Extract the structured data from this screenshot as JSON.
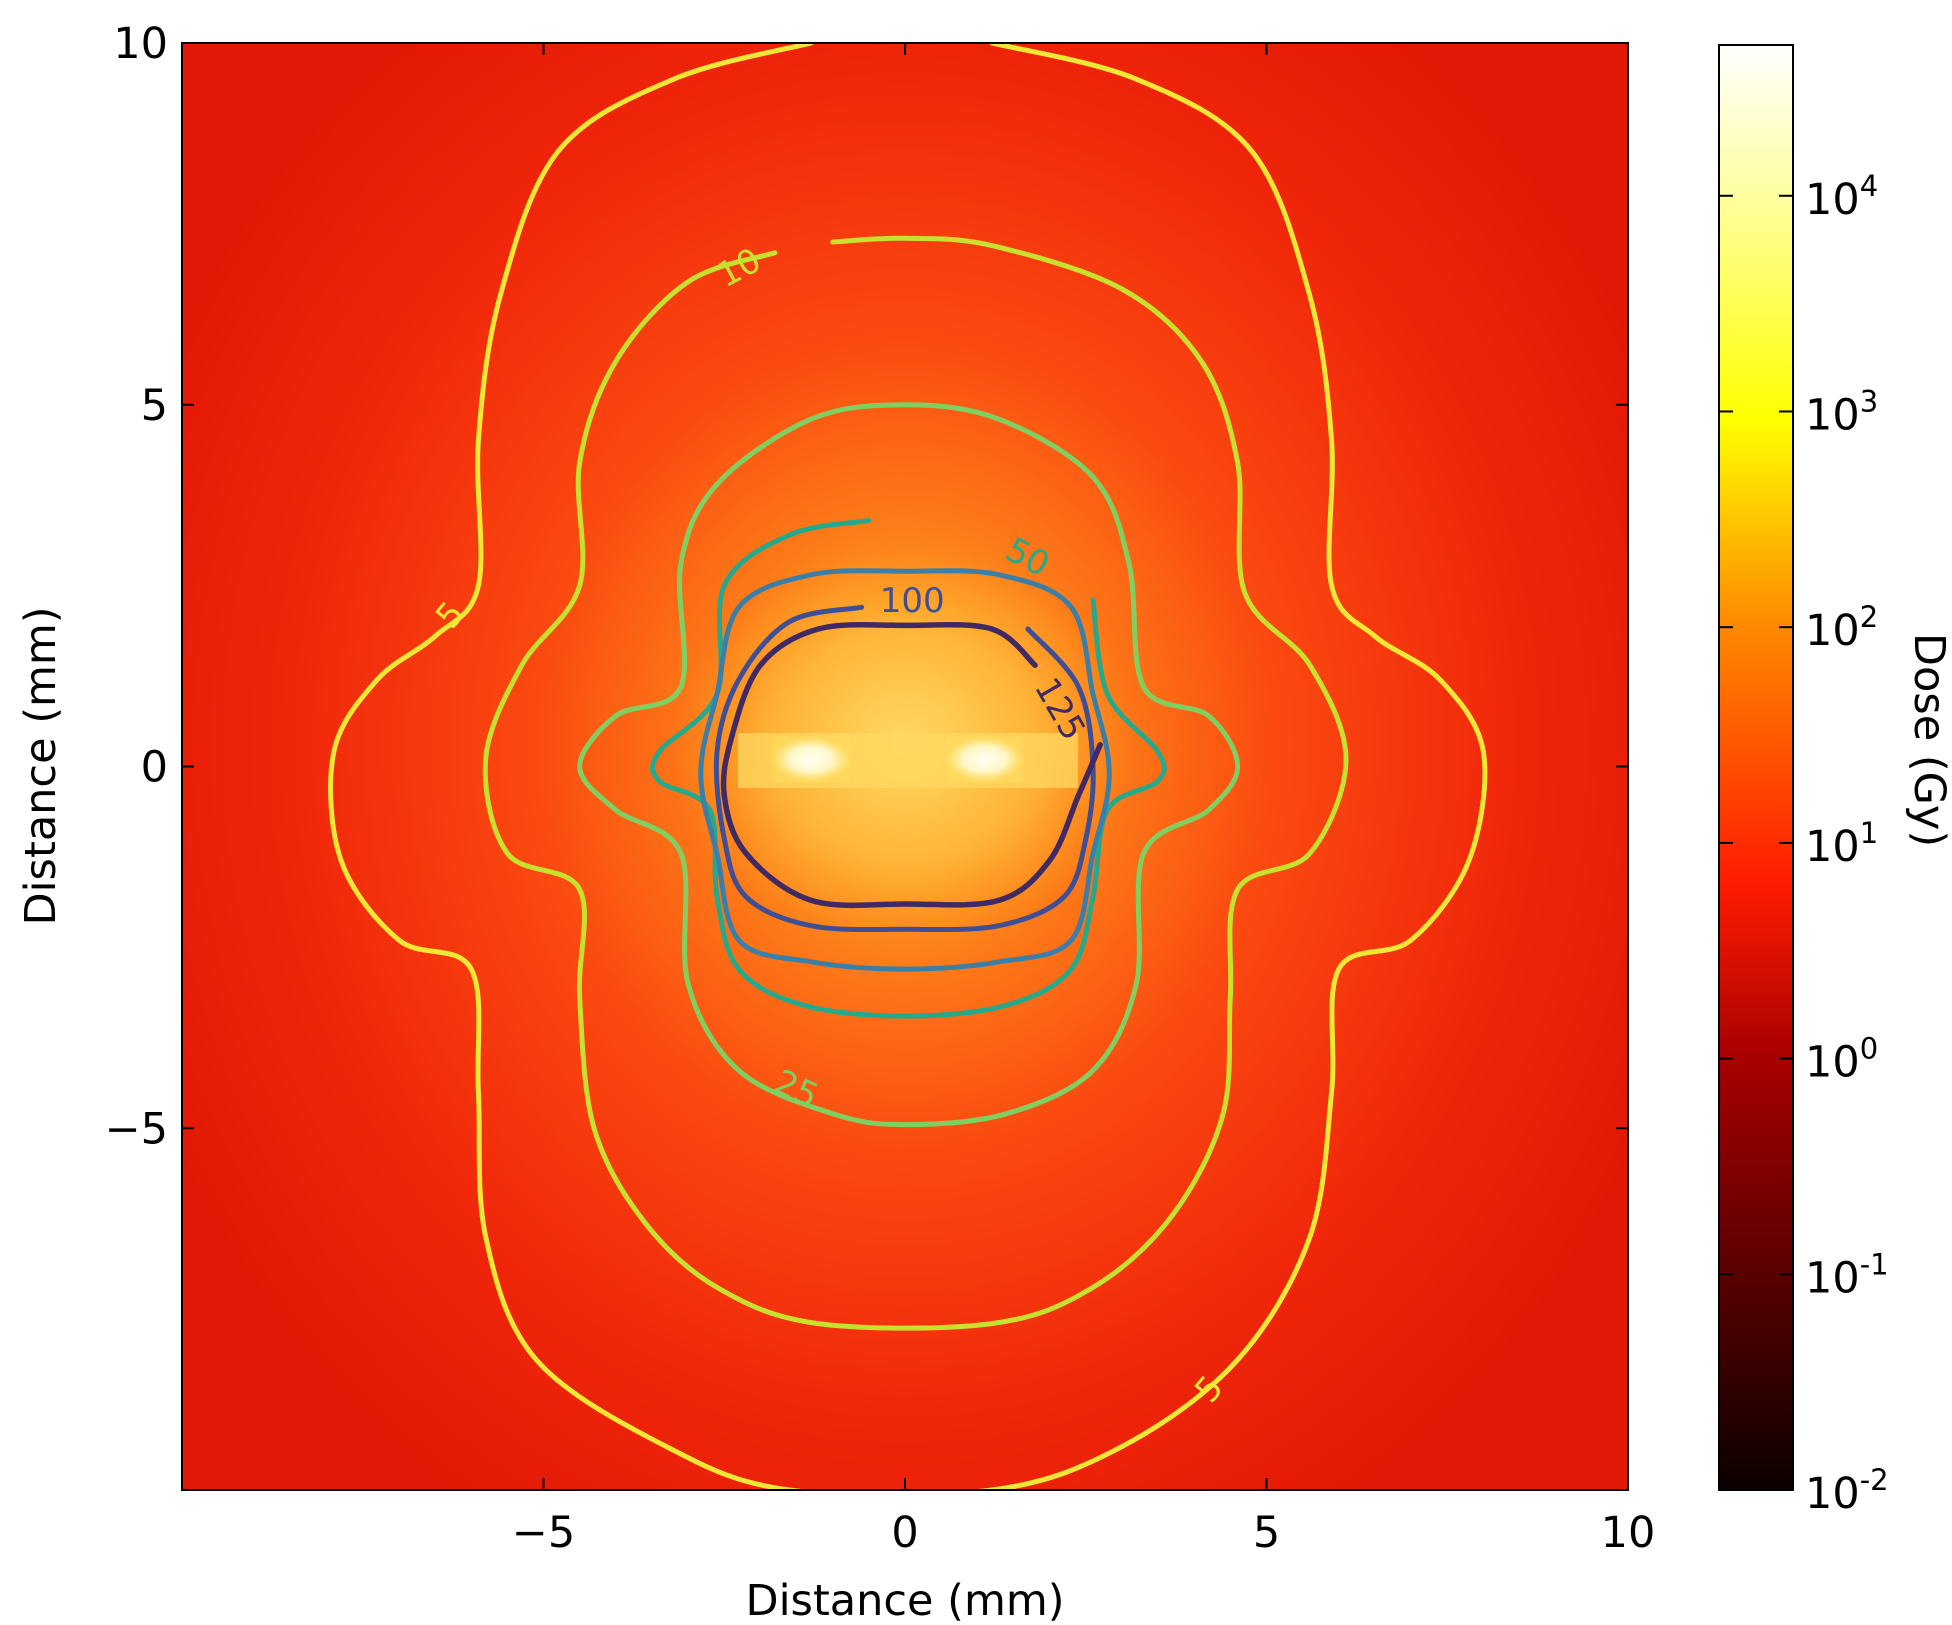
{
  "chart_data": {
    "type": "heatmap",
    "xlabel": "Distance (mm)",
    "ylabel": "Distance (mm)",
    "xlim": [
      -10,
      10
    ],
    "ylim": [
      -10,
      10
    ],
    "x_ticks": [
      -5,
      0,
      5,
      10
    ],
    "y_ticks": [
      10,
      5,
      0,
      -5
    ],
    "x_tick_labels": [
      "−5",
      "0",
      "5",
      "10"
    ],
    "y_tick_labels": [
      "10",
      "5",
      "0",
      "−5"
    ],
    "colormap": "hot",
    "hot_spots": [
      {
        "x": -1.3,
        "y": 0.1,
        "half_width": 0.55,
        "half_height": 0.32
      },
      {
        "x": 1.1,
        "y": 0.1,
        "half_width": 0.55,
        "half_height": 0.32
      }
    ],
    "colorbar": {
      "label": "Dose (Gy)",
      "scale": "log",
      "range": [
        0.01,
        50000
      ],
      "tick_values": [
        0.01,
        0.1,
        1,
        10,
        100,
        1000,
        10000
      ],
      "tick_labels": [
        {
          "base": "10",
          "exp": "-2"
        },
        {
          "base": "10",
          "exp": "-1"
        },
        {
          "base": "10",
          "exp": "0"
        },
        {
          "base": "10",
          "exp": "1"
        },
        {
          "base": "10",
          "exp": "2"
        },
        {
          "base": "10",
          "exp": "3"
        },
        {
          "base": "10",
          "exp": "4"
        }
      ]
    },
    "contours": [
      {
        "level": 5,
        "color": "#f2e735",
        "width": 5,
        "label_text": "5",
        "label_positions": [
          {
            "x": -6.3,
            "y": 2.1,
            "angle": -50
          },
          {
            "x": 4.2,
            "y": -8.6,
            "angle": -50
          }
        ],
        "points": [
          [
            -1.3,
            10
          ],
          [
            -3.2,
            9.5
          ],
          [
            -4.8,
            8.5
          ],
          [
            -5.6,
            6.5
          ],
          [
            -5.9,
            4.5
          ],
          [
            -5.9,
            2.5
          ],
          [
            -6.5,
            1.8
          ],
          [
            -7.3,
            1.2
          ],
          [
            -7.9,
            0.2
          ],
          [
            -7.8,
            -1.3
          ],
          [
            -7.0,
            -2.4
          ],
          [
            -6.0,
            -2.8
          ],
          [
            -5.9,
            -4.5
          ],
          [
            -5.8,
            -6.5
          ],
          [
            -5.1,
            -8.2
          ],
          [
            -3.3,
            -9.4
          ],
          [
            -1.6,
            -10
          ],
          [
            1.2,
            -10
          ],
          [
            3.0,
            -9.4
          ],
          [
            4.6,
            -8.2
          ],
          [
            5.6,
            -6.5
          ],
          [
            5.9,
            -4.5
          ],
          [
            6.0,
            -2.8
          ],
          [
            7.0,
            -2.4
          ],
          [
            7.8,
            -1.3
          ],
          [
            8.0,
            0.2
          ],
          [
            7.4,
            1.2
          ],
          [
            6.5,
            1.8
          ],
          [
            5.9,
            2.5
          ],
          [
            5.9,
            4.5
          ],
          [
            5.6,
            6.5
          ],
          [
            4.8,
            8.5
          ],
          [
            3.2,
            9.5
          ],
          [
            1.2,
            10
          ]
        ]
      },
      {
        "level": 10,
        "color": "#c8e02e",
        "width": 5,
        "label_text": "10",
        "label_positions": [
          {
            "x": -2.3,
            "y": 6.9,
            "angle": -28
          }
        ],
        "points": [
          [
            -1.8,
            7.1
          ],
          [
            -3.0,
            6.7
          ],
          [
            -4.0,
            5.6
          ],
          [
            -4.5,
            4.2
          ],
          [
            -4.5,
            2.5
          ],
          [
            -5.3,
            1.4
          ],
          [
            -5.8,
            0.1
          ],
          [
            -5.5,
            -1.2
          ],
          [
            -4.5,
            -1.7
          ],
          [
            -4.5,
            -3.2
          ],
          [
            -4.3,
            -5.0
          ],
          [
            -3.6,
            -6.3
          ],
          [
            -2.6,
            -7.2
          ],
          [
            -1.2,
            -7.7
          ],
          [
            1.2,
            -7.7
          ],
          [
            2.6,
            -7.2
          ],
          [
            3.7,
            -6.2
          ],
          [
            4.4,
            -4.8
          ],
          [
            4.5,
            -3.2
          ],
          [
            4.6,
            -1.7
          ],
          [
            5.6,
            -1.2
          ],
          [
            6.1,
            0.1
          ],
          [
            5.6,
            1.4
          ],
          [
            4.7,
            2.4
          ],
          [
            4.6,
            4.2
          ],
          [
            4.1,
            5.6
          ],
          [
            3.0,
            6.6
          ],
          [
            1.2,
            7.2
          ],
          [
            0,
            7.3
          ],
          [
            -1.0,
            7.25
          ]
        ]
      },
      {
        "level": 25,
        "color": "#7fd060",
        "width": 5,
        "label_text": "25",
        "label_positions": [
          {
            "x": -1.5,
            "y": -4.45,
            "angle": 25
          }
        ],
        "points": [
          [
            -1.0,
            -4.8
          ],
          [
            -2.3,
            -4.2
          ],
          [
            -3.0,
            -3.0
          ],
          [
            -3.1,
            -1.2
          ],
          [
            -4.0,
            -0.6
          ],
          [
            -4.5,
            0.0
          ],
          [
            -4.0,
            0.7
          ],
          [
            -3.1,
            1.1
          ],
          [
            -3.1,
            2.8
          ],
          [
            -2.6,
            3.9
          ],
          [
            -1.3,
            4.8
          ],
          [
            0,
            5.0
          ],
          [
            1.3,
            4.8
          ],
          [
            2.6,
            4.0
          ],
          [
            3.1,
            2.8
          ],
          [
            3.3,
            1.1
          ],
          [
            4.2,
            0.7
          ],
          [
            4.6,
            0.0
          ],
          [
            4.2,
            -0.6
          ],
          [
            3.3,
            -1.2
          ],
          [
            3.2,
            -3.0
          ],
          [
            2.6,
            -4.2
          ],
          [
            1.4,
            -4.8
          ],
          [
            0,
            -4.95
          ]
        ]
      },
      {
        "level": 50,
        "color": "#26a98a",
        "width": 5,
        "label_text": "50",
        "label_positions": [
          {
            "x": 1.7,
            "y": 2.9,
            "angle": 28
          }
        ],
        "points": [
          [
            -0.5,
            3.4
          ],
          [
            -1.6,
            3.2
          ],
          [
            -2.5,
            2.5
          ],
          [
            -2.6,
            1.0
          ],
          [
            -3.4,
            0.2
          ],
          [
            -3.4,
            -0.2
          ],
          [
            -2.7,
            -0.6
          ],
          [
            -2.6,
            -1.8
          ],
          [
            -2.3,
            -2.8
          ],
          [
            -1.4,
            -3.3
          ],
          [
            0,
            -3.45
          ],
          [
            1.4,
            -3.3
          ],
          [
            2.3,
            -2.8
          ],
          [
            2.6,
            -1.8
          ],
          [
            2.8,
            -0.6
          ],
          [
            3.5,
            -0.2
          ],
          [
            3.5,
            0.2
          ],
          [
            2.8,
            1.0
          ],
          [
            2.6,
            2.3
          ]
        ]
      },
      {
        "level": 75,
        "color": "#3b7fa8",
        "width": 5,
        "label_text": "",
        "label_positions": [],
        "points": [
          [
            -1.3,
            2.65
          ],
          [
            -2.3,
            2.2
          ],
          [
            -2.6,
            1.0
          ],
          [
            -2.8,
            0.2
          ],
          [
            -2.8,
            -0.4
          ],
          [
            -2.6,
            -1.2
          ],
          [
            -2.3,
            -2.4
          ],
          [
            -1.3,
            -2.7
          ],
          [
            0,
            -2.8
          ],
          [
            1.3,
            -2.7
          ],
          [
            2.3,
            -2.4
          ],
          [
            2.6,
            -1.2
          ],
          [
            2.8,
            -0.4
          ],
          [
            2.8,
            0.2
          ],
          [
            2.6,
            1.0
          ],
          [
            2.3,
            2.2
          ],
          [
            1.3,
            2.65
          ],
          [
            0,
            2.7
          ]
        ]
      },
      {
        "level": 100,
        "color": "#3e4f96",
        "width": 5,
        "label_text": "100",
        "label_positions": [
          {
            "x": 0.1,
            "y": 2.3,
            "angle": 0
          }
        ],
        "points": [
          [
            -0.6,
            2.2
          ],
          [
            -1.6,
            2.0
          ],
          [
            -2.3,
            1.2
          ],
          [
            -2.6,
            0.2
          ],
          [
            -2.5,
            -1.0
          ],
          [
            -2.2,
            -1.8
          ],
          [
            -1.3,
            -2.2
          ],
          [
            0,
            -2.25
          ],
          [
            1.3,
            -2.2
          ],
          [
            2.2,
            -1.8
          ],
          [
            2.5,
            -1.0
          ],
          [
            2.6,
            0.0
          ],
          [
            2.4,
            1.1
          ],
          [
            1.7,
            1.9
          ]
        ]
      },
      {
        "level": 125,
        "color": "#412a64",
        "width": 5.5,
        "label_text": "125",
        "label_positions": [
          {
            "x": 2.15,
            "y": 0.8,
            "angle": 60
          }
        ],
        "points": [
          [
            1.8,
            1.4
          ],
          [
            1.2,
            1.9
          ],
          [
            0,
            1.95
          ],
          [
            -1.2,
            1.9
          ],
          [
            -2.0,
            1.4
          ],
          [
            -2.4,
            0.4
          ],
          [
            -2.5,
            -0.4
          ],
          [
            -2.2,
            -1.2
          ],
          [
            -1.3,
            -1.85
          ],
          [
            0,
            -1.9
          ],
          [
            1.3,
            -1.85
          ],
          [
            2.0,
            -1.3
          ],
          [
            2.4,
            -0.4
          ],
          [
            2.7,
            0.3
          ]
        ]
      }
    ]
  }
}
